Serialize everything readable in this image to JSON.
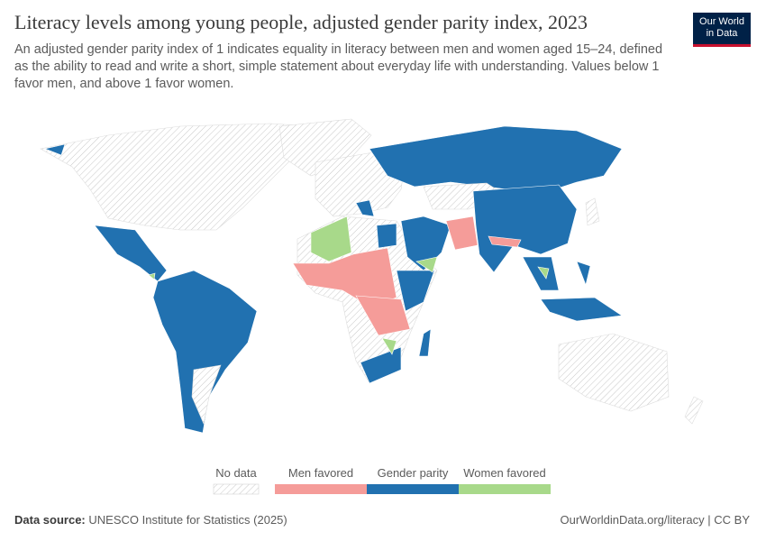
{
  "header": {
    "title": "Literacy levels among young people, adjusted gender parity index, 2023",
    "subtitle": "An adjusted gender parity index of 1 indicates equality in literacy between men and women aged 15–24, defined as the ability to read and write a short, simple statement about everyday life with understanding. Values below 1 favor men, and above 1 favor women.",
    "logo": [
      "Our World",
      "in Data"
    ]
  },
  "legend": {
    "items": [
      {
        "label": "No data",
        "color": "#c8c8c8"
      },
      {
        "label": "Men favored",
        "color": "#f59c99"
      },
      {
        "label": "Gender parity",
        "color": "#2171b0"
      },
      {
        "label": "Women favored",
        "color": "#a8d98a"
      }
    ]
  },
  "footer": {
    "source_label": "Data source:",
    "source": "UNESCO Institute for Statistics (2025)",
    "url": "OurWorldinData.org/literacy | CC BY"
  }
}
